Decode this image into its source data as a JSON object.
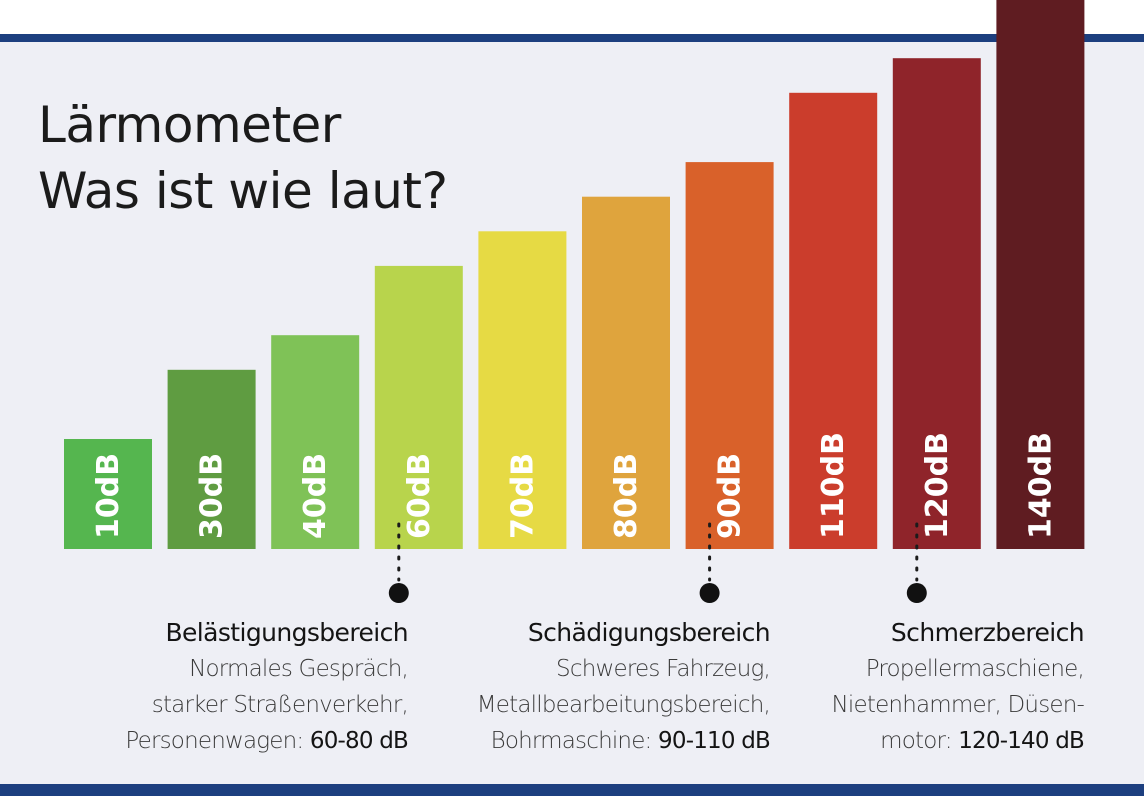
{
  "title": {
    "line1": "Lärmometer",
    "line2": "Was ist wie laut?"
  },
  "chart_data": {
    "type": "bar",
    "title": "Lärmometer – Was ist wie laut?",
    "categories": [
      "10dB",
      "30dB",
      "40dB",
      "60dB",
      "70dB",
      "80dB",
      "90dB",
      "110dB",
      "120dB",
      "140dB"
    ],
    "values": [
      10,
      30,
      40,
      60,
      70,
      80,
      90,
      110,
      120,
      140
    ],
    "unit": "dB",
    "colors": [
      "#55b64f",
      "#5f9c41",
      "#7fc257",
      "#b8d44c",
      "#e6da44",
      "#dfa43d",
      "#d9612a",
      "#cb3d2c",
      "#8f242a",
      "#5f1c21"
    ],
    "xlabel": "",
    "ylabel": "",
    "ylim": [
      0,
      140
    ],
    "markers_after_bar": [
      "60dB",
      "90dB",
      "120dB"
    ]
  },
  "zones": [
    {
      "title": "Belästigungsbereich",
      "line1": "Normales Gespräch,",
      "line2": "starker Straßenverkehr,",
      "line3_prefix": "Personenwagen: ",
      "range": "60-80 dB"
    },
    {
      "title": "Schädigungsbereich",
      "line1": "Schweres Fahrzeug,",
      "line2": "Metallbearbeitungsbereich,",
      "line3_prefix": "Bohrmaschine: ",
      "range": "90-110 dB"
    },
    {
      "title": "Schmerzbereich",
      "line1": "Propellermaschiene,",
      "line2": "Nietenhammer, Düsen-",
      "line3_prefix": "motor: ",
      "range": "120-140 dB"
    }
  ]
}
